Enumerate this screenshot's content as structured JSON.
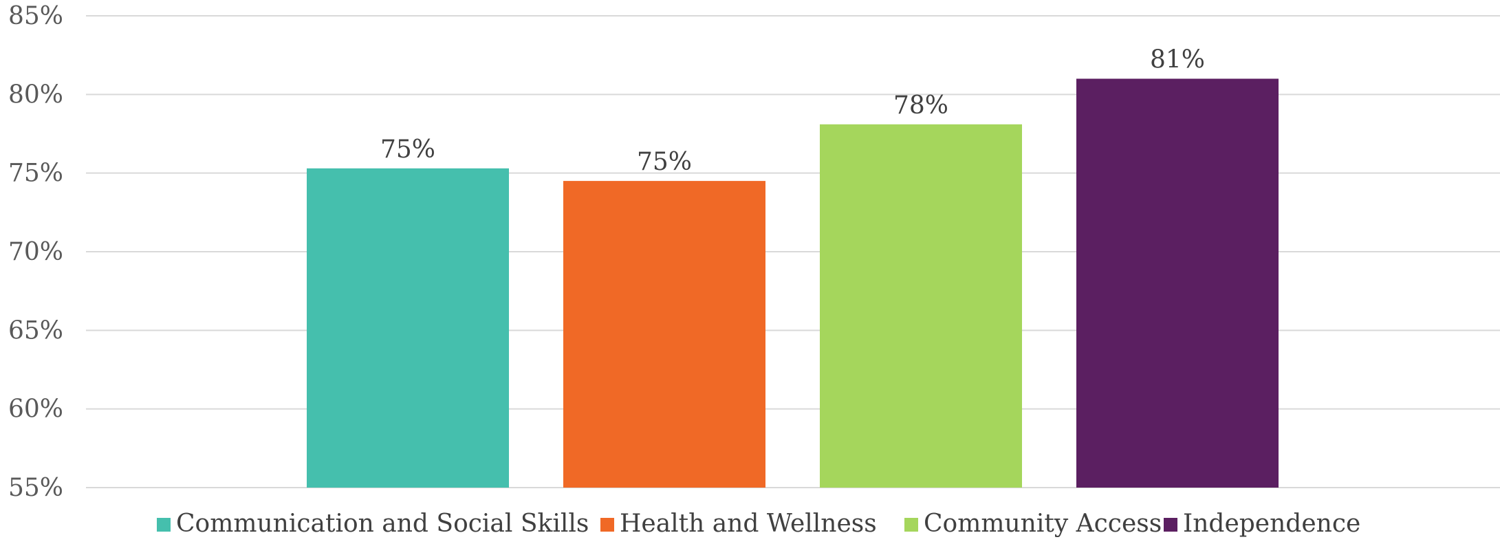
{
  "chart_data": {
    "type": "bar",
    "categories": [
      "Communication and Social Skills",
      "Health and Wellness",
      "Community Access",
      "Independence"
    ],
    "values": [
      75.3,
      74.5,
      78.1,
      81.0
    ],
    "data_labels": [
      "75%",
      "75%",
      "78%",
      "81%"
    ],
    "colors": [
      "#45bfad",
      "#f06926",
      "#a5d65c",
      "#5b1f61"
    ],
    "ylim": [
      55,
      85
    ],
    "yticks": [
      55,
      60,
      65,
      70,
      75,
      80,
      85
    ],
    "ytick_labels": [
      "55%",
      "60%",
      "65%",
      "70%",
      "75%",
      "80%",
      "85%"
    ],
    "grid": true,
    "legend": {
      "position": "bottom",
      "entries": [
        "Communication and Social Skills",
        "Health and Wellness",
        "Community Access",
        "Independence"
      ]
    },
    "title": "",
    "xlabel": "",
    "ylabel": ""
  }
}
